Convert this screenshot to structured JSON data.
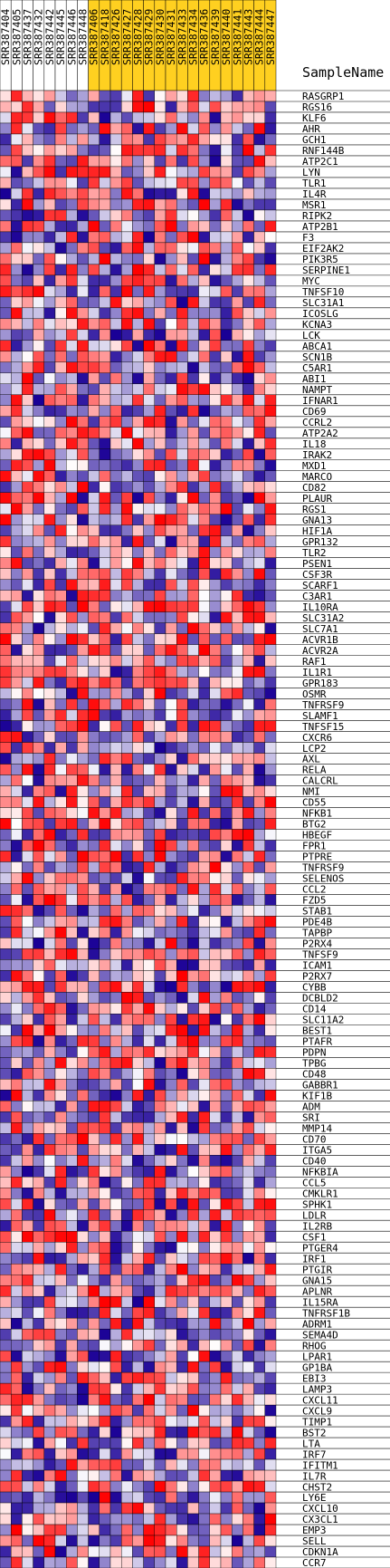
{
  "chart_data": {
    "type": "heatmap",
    "title": "",
    "header_label": "SampleName",
    "columns": [
      {
        "name": "SRR387404",
        "group": "a"
      },
      {
        "name": "SRR387405",
        "group": "a"
      },
      {
        "name": "SRR387437",
        "group": "a"
      },
      {
        "name": "SRR387432",
        "group": "a"
      },
      {
        "name": "SRR387442",
        "group": "a"
      },
      {
        "name": "SRR387445",
        "group": "a"
      },
      {
        "name": "SRR387446",
        "group": "a"
      },
      {
        "name": "SRR387448",
        "group": "a"
      },
      {
        "name": "SRR387406",
        "group": "b"
      },
      {
        "name": "SRR387418",
        "group": "b"
      },
      {
        "name": "SRR387426",
        "group": "b"
      },
      {
        "name": "SRR387427",
        "group": "b"
      },
      {
        "name": "SRR387428",
        "group": "b"
      },
      {
        "name": "SRR387429",
        "group": "b"
      },
      {
        "name": "SRR387430",
        "group": "b"
      },
      {
        "name": "SRR387431",
        "group": "b"
      },
      {
        "name": "SRR387433",
        "group": "b"
      },
      {
        "name": "SRR387434",
        "group": "b"
      },
      {
        "name": "SRR387436",
        "group": "b"
      },
      {
        "name": "SRR387439",
        "group": "b"
      },
      {
        "name": "SRR387440",
        "group": "b"
      },
      {
        "name": "SRR387441",
        "group": "b"
      },
      {
        "name": "SRR387443",
        "group": "b"
      },
      {
        "name": "SRR387444",
        "group": "b"
      },
      {
        "name": "SRR387447",
        "group": "b"
      }
    ],
    "group_colors": {
      "a": "#ffffff",
      "b": "#ffd020"
    },
    "rows": [
      "RASGRP1",
      "RGS16",
      "KLF6",
      "AHR",
      "GCH1",
      "RNF144B",
      "ATP2C1",
      "LYN",
      "TLR1",
      "IL4R",
      "MSR1",
      "RIPK2",
      "ATP2B1",
      "F3",
      "EIF2AK2",
      "PIK3R5",
      "SERPINE1",
      "MYC",
      "TNFSF10",
      "SLC31A1",
      "ICOSLG",
      "KCNA3",
      "LCK",
      "ABCA1",
      "SCN1B",
      "C5AR1",
      "ABI1",
      "NAMPT",
      "IFNAR1",
      "CD69",
      "CCRL2",
      "ATP2A2",
      "IL18",
      "IRAK2",
      "MXD1",
      "MARCO",
      "CD82",
      "PLAUR",
      "RGS1",
      "GNA13",
      "HIF1A",
      "GPR132",
      "TLR2",
      "PSEN1",
      "CSF3R",
      "SCARF1",
      "C3AR1",
      "IL10RA",
      "SLC31A2",
      "SLC7A1",
      "ACVR1B",
      "ACVR2A",
      "RAF1",
      "IL1R1",
      "GPR183",
      "OSMR",
      "TNFRSF9",
      "SLAMF1",
      "TNFSF15",
      "CXCR6",
      "LCP2",
      "AXL",
      "RELA",
      "CALCRL",
      "NMI",
      "CD55",
      "NFKB1",
      "BTG2",
      "HBEGF",
      "FPR1",
      "PTPRE",
      "TNFRSF9",
      "SELENOS",
      "CCL2",
      "FZD5",
      "STAB1",
      "PDE4B",
      "TAPBP",
      "P2RX4",
      "TNFSF9",
      "ICAM1",
      "P2RX7",
      "CYBB",
      "DCBLD2",
      "CD14",
      "SLC11A2",
      "BEST1",
      "PTAFR",
      "PDPN",
      "TPBG",
      "CD48",
      "GABBR1",
      "KIF1B",
      "ADM",
      "SRI",
      "MMP14",
      "CD70",
      "ITGA5",
      "CD40",
      "NFKBIA",
      "CCL5",
      "CMKLR1",
      "SPHK1",
      "LDLR",
      "IL2RB",
      "CSF1",
      "PTGER4",
      "IRF1",
      "PTGIR",
      "GNA15",
      "APLNR",
      "IL15RA",
      "TNFRSF1B",
      "ADRM1",
      "SEMA4D",
      "RHOG",
      "LPAR1",
      "GP1BA",
      "EBI3",
      "LAMP3",
      "CXCL11",
      "CXCL9",
      "TIMP1",
      "BST2",
      "LTA",
      "IRF7",
      "IFITM1",
      "IL7R",
      "CHST2",
      "LY6E",
      "CXCL10",
      "CX3CL1",
      "EMP3",
      "SELL",
      "CDKN1A",
      "CCR7"
    ],
    "value_range": [
      -1,
      1
    ],
    "color_scale": {
      "low": "#1a0096",
      "mid": "#ffffff",
      "high": "#ff0000"
    },
    "seed": 20240611,
    "values": []
  }
}
